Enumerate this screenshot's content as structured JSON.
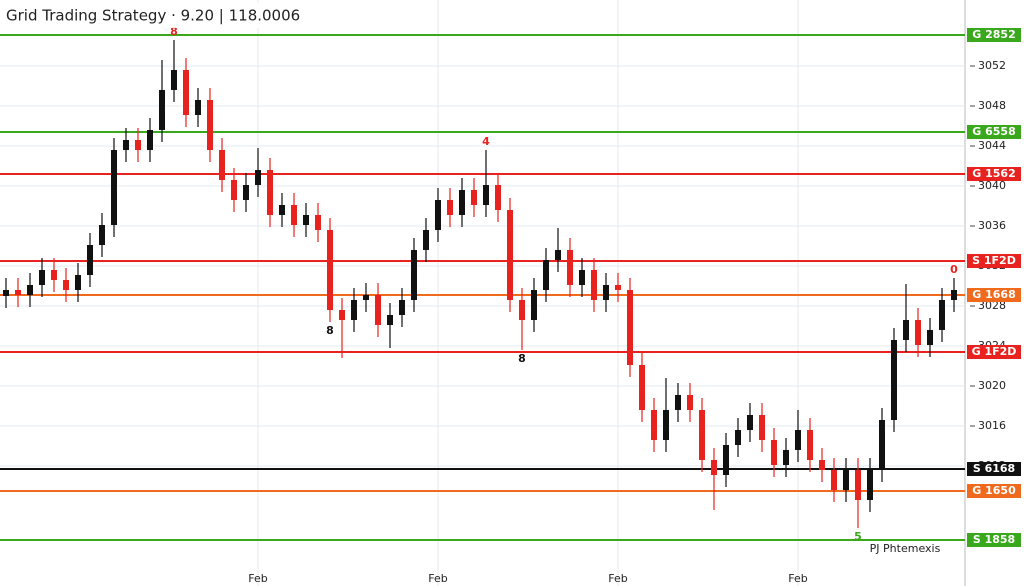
{
  "chart_data": {
    "type": "candlestick",
    "title": "Grid Trading Strategy · 9.20 | 118.0006",
    "categories": [
      null,
      null,
      null,
      null,
      null,
      null,
      null,
      null,
      null,
      null,
      null,
      null,
      null,
      null,
      null,
      null,
      null,
      null,
      null,
      null,
      null,
      "Feb",
      null,
      null,
      null,
      null,
      null,
      null,
      null,
      null,
      null,
      null,
      null,
      null,
      null,
      null,
      "Feb",
      null,
      null,
      null,
      null,
      null,
      null,
      null,
      null,
      null,
      null,
      null,
      null,
      null,
      null,
      "Feb",
      null,
      null,
      null,
      null,
      null,
      null,
      null,
      null,
      null,
      null,
      null,
      null,
      null,
      null,
      "Feb",
      null,
      null,
      null,
      null,
      null,
      null,
      null,
      null,
      null,
      null,
      null,
      null,
      null
    ],
    "open": [
      3029.0,
      3029.6,
      3029.1,
      3030.1,
      3031.6,
      3030.6,
      3029.6,
      3031.1,
      3034.1,
      3036.1,
      3043.6,
      3044.6,
      3043.6,
      3045.6,
      3049.6,
      3051.6,
      3047.1,
      3048.6,
      3043.6,
      3040.6,
      3038.6,
      3040.1,
      3041.6,
      3037.1,
      3038.1,
      3036.1,
      3037.1,
      3035.6,
      3027.6,
      3026.6,
      3028.6,
      3029.1,
      3026.1,
      3027.1,
      3028.6,
      3033.6,
      3035.6,
      3038.6,
      3037.1,
      3039.6,
      3038.1,
      3040.1,
      3037.6,
      3028.6,
      3026.6,
      3029.6,
      3032.6,
      3033.6,
      3030.1,
      3031.6,
      3028.6,
      3030.1,
      3029.6,
      3022.1,
      3017.6,
      3014.6,
      3017.6,
      3019.1,
      3017.6,
      3012.6,
      3011.1,
      3014.1,
      3015.6,
      3017.1,
      3014.6,
      3012.1,
      3013.6,
      3015.6,
      3012.6,
      3011.6,
      3009.6,
      3011.6,
      3008.6,
      3011.6,
      3016.6,
      3024.6,
      3026.6,
      3024.1,
      3025.6,
      3028.6
    ],
    "high": [
      3030.8,
      3030.8,
      3031.3,
      3032.8,
      3032.8,
      3031.8,
      3032.3,
      3035.3,
      3037.3,
      3044.8,
      3045.8,
      3045.8,
      3046.8,
      3052.6,
      3054.6,
      3052.8,
      3049.8,
      3049.8,
      3044.8,
      3041.8,
      3041.3,
      3043.8,
      3042.8,
      3039.3,
      3039.3,
      3038.3,
      3038.3,
      3036.8,
      3028.8,
      3029.8,
      3030.3,
      3030.3,
      3028.3,
      3029.8,
      3034.8,
      3036.8,
      3039.8,
      3039.8,
      3040.8,
      3040.8,
      3043.6,
      3041.3,
      3038.8,
      3029.8,
      3030.8,
      3033.8,
      3035.8,
      3034.8,
      3032.8,
      3032.8,
      3031.3,
      3031.3,
      3030.8,
      3023.3,
      3018.8,
      3020.8,
      3020.3,
      3020.3,
      3018.8,
      3013.8,
      3015.3,
      3016.8,
      3018.3,
      3018.3,
      3015.8,
      3014.8,
      3017.6,
      3016.8,
      3013.8,
      3012.8,
      3012.8,
      3012.8,
      3012.8,
      3017.8,
      3025.8,
      3030.2,
      3027.8,
      3026.8,
      3029.8,
      3030.8
    ],
    "low": [
      3027.8,
      3027.9,
      3027.9,
      3028.9,
      3029.4,
      3028.4,
      3028.4,
      3029.9,
      3032.9,
      3034.9,
      3042.4,
      3042.4,
      3042.4,
      3044.4,
      3048.4,
      3045.9,
      3045.9,
      3042.4,
      3039.4,
      3037.4,
      3037.4,
      3038.9,
      3035.9,
      3035.9,
      3034.9,
      3034.9,
      3034.4,
      3026.4,
      3022.8,
      3025.4,
      3027.4,
      3024.9,
      3023.8,
      3025.9,
      3027.4,
      3032.4,
      3034.4,
      3035.9,
      3035.9,
      3036.9,
      3036.9,
      3036.4,
      3027.4,
      3023.6,
      3025.4,
      3028.4,
      3031.4,
      3028.9,
      3028.9,
      3027.4,
      3027.4,
      3028.4,
      3020.9,
      3016.4,
      3013.4,
      3013.4,
      3016.4,
      3016.4,
      3011.4,
      3007.6,
      3009.9,
      3012.9,
      3014.4,
      3013.4,
      3010.9,
      3010.9,
      3012.4,
      3011.4,
      3010.4,
      3008.4,
      3008.4,
      3005.8,
      3007.4,
      3010.4,
      3015.4,
      3023.4,
      3022.9,
      3022.9,
      3024.4,
      3027.4
    ],
    "close": [
      3029.6,
      3029.1,
      3030.1,
      3031.6,
      3030.6,
      3029.6,
      3031.1,
      3034.1,
      3036.1,
      3043.6,
      3044.6,
      3043.6,
      3045.6,
      3049.6,
      3051.6,
      3047.1,
      3048.6,
      3043.6,
      3040.6,
      3038.6,
      3040.1,
      3041.6,
      3037.1,
      3038.1,
      3036.1,
      3037.1,
      3035.6,
      3027.6,
      3026.6,
      3028.6,
      3029.1,
      3026.1,
      3027.1,
      3028.6,
      3033.6,
      3035.6,
      3038.6,
      3037.1,
      3039.6,
      3038.1,
      3040.1,
      3037.6,
      3028.6,
      3026.6,
      3029.6,
      3032.6,
      3033.6,
      3030.1,
      3031.6,
      3028.6,
      3030.1,
      3029.6,
      3022.1,
      3017.6,
      3014.6,
      3017.6,
      3019.1,
      3017.6,
      3012.6,
      3011.1,
      3014.1,
      3015.6,
      3017.1,
      3014.6,
      3012.1,
      3013.6,
      3015.6,
      3012.6,
      3011.6,
      3009.6,
      3011.6,
      3008.6,
      3011.6,
      3016.6,
      3024.6,
      3026.6,
      3024.1,
      3025.6,
      3028.6,
      3029.6
    ],
    "up_color": "#111111",
    "down_color": "#e8231f",
    "ylim": [
      3000,
      3058.6
    ],
    "yticks": [
      3052,
      3048,
      3044,
      3040,
      3036,
      3032,
      3028,
      3024,
      3020,
      3016,
      3012
    ],
    "grid": true,
    "levels": [
      {
        "value": 3055.1,
        "label": "G 2852",
        "color": "#3aa81c"
      },
      {
        "value": 3045.4,
        "label": "G 6558",
        "color": "#3aa81c"
      },
      {
        "value": 3041.2,
        "label": "G 1562",
        "color": "#e8231f"
      },
      {
        "value": 3032.5,
        "label": "S 1F2D",
        "color": "#e8231f"
      },
      {
        "value": 3029.1,
        "label": "G 1668",
        "color": "#f06a1e"
      },
      {
        "value": 3023.4,
        "label": "G 1F2D",
        "color": "#e8231f"
      },
      {
        "value": 3011.7,
        "label": "S 6168",
        "color": "#111111"
      },
      {
        "value": 3009.5,
        "label": "G 1650",
        "color": "#f06a1e"
      },
      {
        "value": 3004.6,
        "label": "S 1858",
        "color": "#3aa81c"
      }
    ],
    "annotations": [
      {
        "text": "8",
        "index": 14,
        "at": "high",
        "color": "#e8231f"
      },
      {
        "text": "4",
        "index": 40,
        "at": "high",
        "color": "#e8231f"
      },
      {
        "text": "8",
        "index": 27,
        "at": "low",
        "color": "#111111"
      },
      {
        "text": "8",
        "index": 43,
        "at": "low",
        "color": "#111111"
      },
      {
        "text": "0",
        "index": 79,
        "at": "high",
        "color": "#e8231f"
      },
      {
        "text": "5",
        "index": 71,
        "at": "low",
        "color": "#3aa81c"
      }
    ],
    "note": "PJ Phtemexis"
  }
}
